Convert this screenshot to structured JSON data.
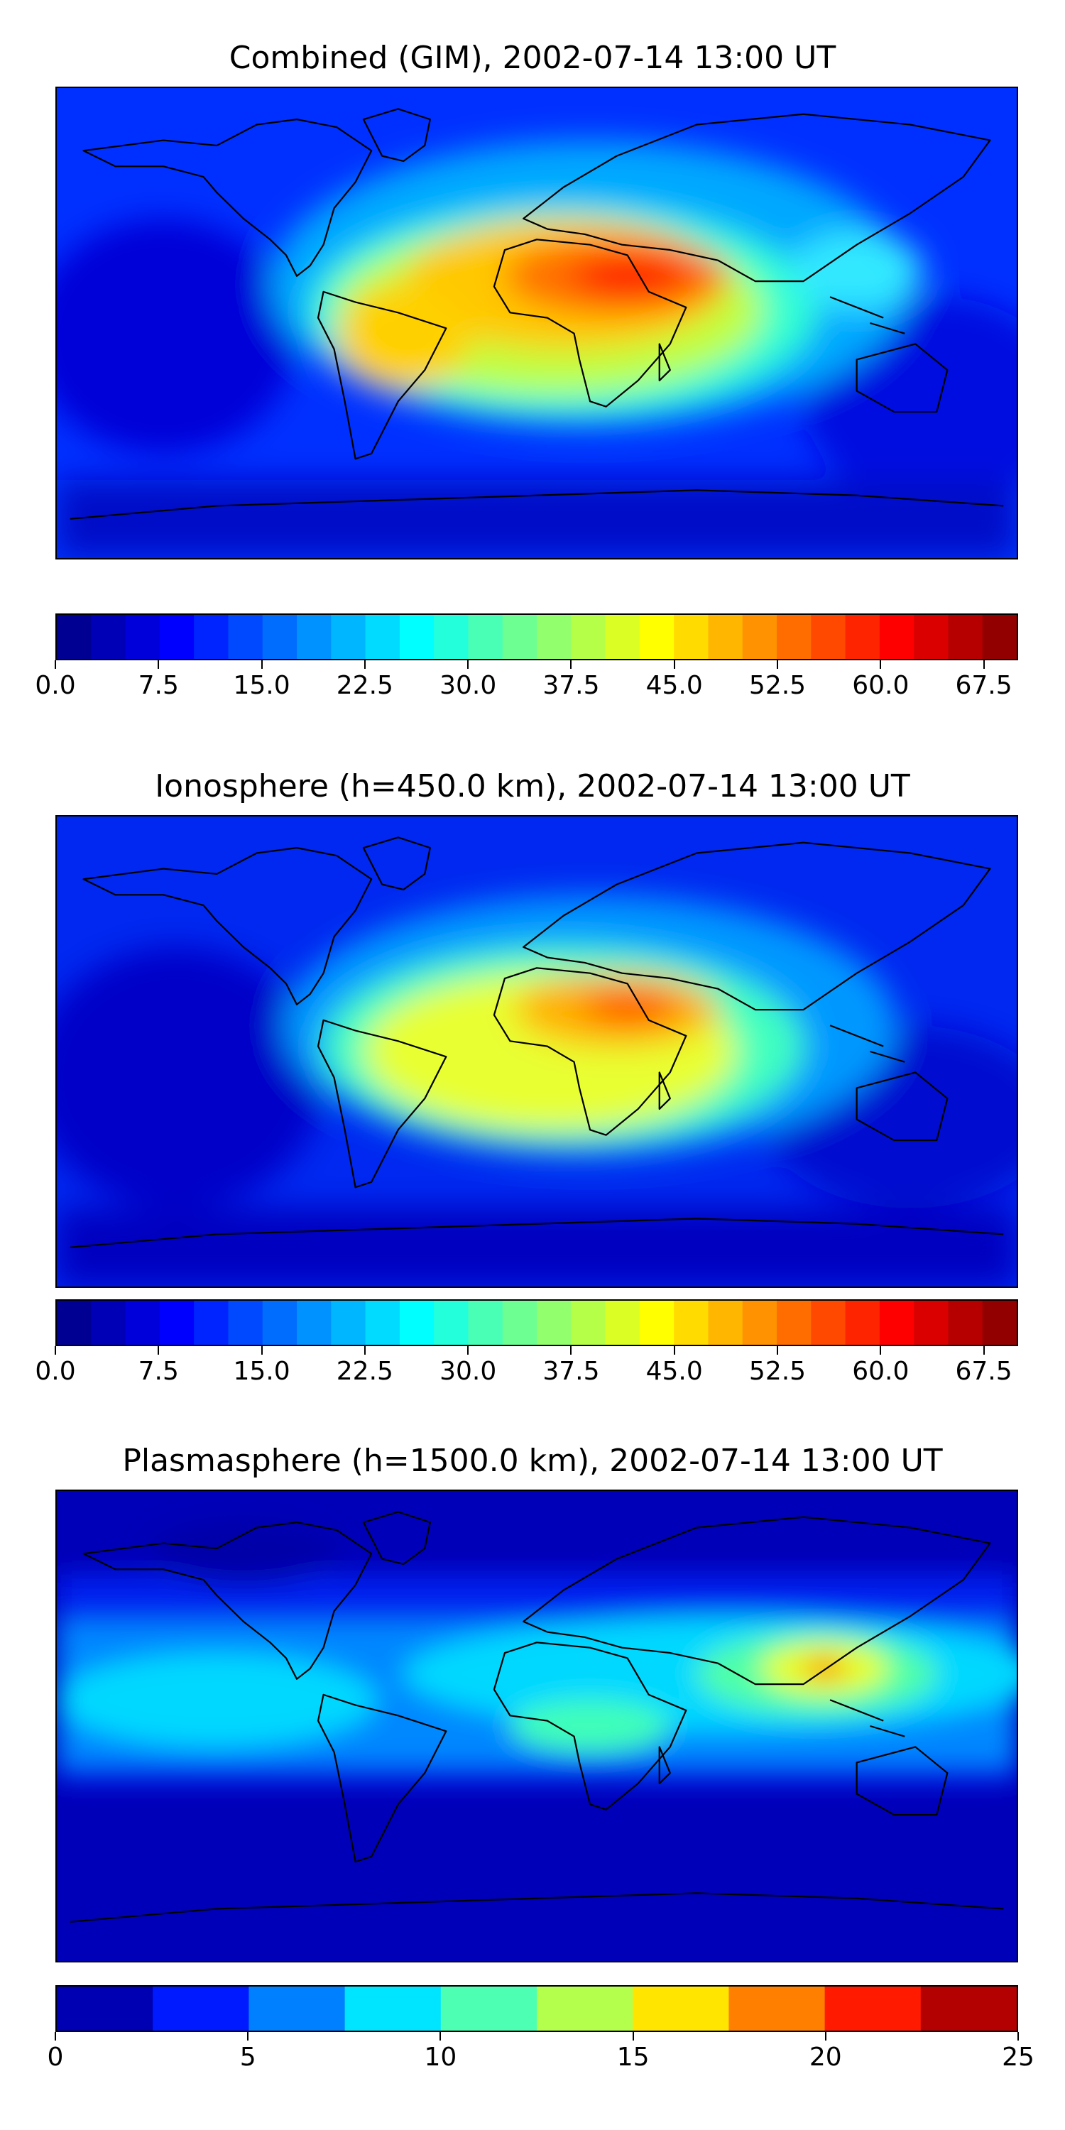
{
  "panels": [
    {
      "title": "Combined (GIM), 2002-07-14 13:00 UT",
      "map_name": "combined",
      "colorbar": {
        "vmin": 0,
        "vmax": 70,
        "levels": 28,
        "ticks": [
          0.0,
          7.5,
          15.0,
          22.5,
          30.0,
          37.5,
          45.0,
          52.5,
          60.0,
          67.5
        ],
        "tick_labels": [
          "0.0",
          "7.5",
          "15.0",
          "22.5",
          "30.0",
          "37.5",
          "45.0",
          "52.5",
          "60.0",
          "67.5"
        ]
      }
    },
    {
      "title": "Ionosphere  (h=450.0 km), 2002-07-14 13:00 UT",
      "map_name": "ionosphere",
      "colorbar": {
        "vmin": 0,
        "vmax": 70,
        "levels": 28,
        "ticks": [
          0.0,
          7.5,
          15.0,
          22.5,
          30.0,
          37.5,
          45.0,
          52.5,
          60.0,
          67.5
        ],
        "tick_labels": [
          "0.0",
          "7.5",
          "15.0",
          "22.5",
          "30.0",
          "37.5",
          "45.0",
          "52.5",
          "60.0",
          "67.5"
        ]
      }
    },
    {
      "title": "Plasmasphere (h=1500.0 km), 2002-07-14 13:00 UT",
      "map_name": "plasmasphere",
      "colorbar": {
        "vmin": 0,
        "vmax": 25,
        "levels": 10,
        "ticks": [
          0,
          5,
          10,
          15,
          20,
          25
        ],
        "tick_labels": [
          "0",
          "5",
          "10",
          "15",
          "20",
          "25"
        ]
      }
    }
  ],
  "chart_data": [
    {
      "type": "heatmap",
      "title": "Combined (GIM), 2002-07-14 13:00 UT",
      "projection": "plate-carree world map with coastlines",
      "colormap": "jet",
      "zlim": [
        0,
        70
      ],
      "features": [
        {
          "region": "north-east Africa / Arabia",
          "value": 65
        },
        {
          "region": "central Africa",
          "value": 50
        },
        {
          "region": "tropical South America",
          "value": 40
        },
        {
          "region": "equatorial Atlantic",
          "value": 45
        },
        {
          "region": "south-east Asia",
          "value": 30
        },
        {
          "region": "Pacific / polar regions",
          "value": 8
        }
      ]
    },
    {
      "type": "heatmap",
      "title": "Ionosphere  (h=450.0 km), 2002-07-14 13:00 UT",
      "projection": "plate-carree world map with coastlines",
      "colormap": "jet",
      "zlim": [
        0,
        70
      ],
      "features": [
        {
          "region": "Arabia / Red Sea",
          "value": 55
        },
        {
          "region": "central Africa",
          "value": 43
        },
        {
          "region": "tropical South America",
          "value": 35
        },
        {
          "region": "south-east Asia",
          "value": 22
        },
        {
          "region": "Pacific / polar regions",
          "value": 5
        }
      ]
    },
    {
      "type": "heatmap",
      "title": "Plasmasphere (h=1500.0 km), 2002-07-14 13:00 UT",
      "projection": "plate-carree world map with coastlines",
      "colormap": "jet",
      "zlim": [
        0,
        25
      ],
      "features": [
        {
          "region": "south-east Asia (Indochina)",
          "value": 19
        },
        {
          "region": "northern equatorial belt",
          "value": 10
        },
        {
          "region": "southern mid-latitudes",
          "value": 4
        },
        {
          "region": "polar regions",
          "value": 1
        }
      ]
    }
  ]
}
